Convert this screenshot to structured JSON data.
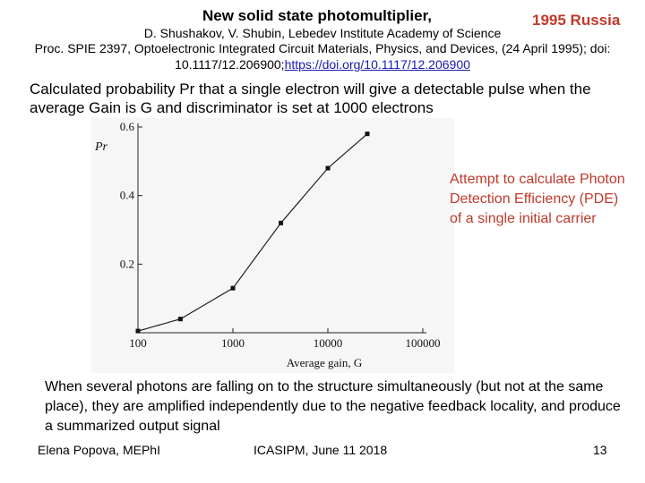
{
  "header": {
    "title": "New solid state photomultiplier,",
    "country": "1995 Russia",
    "authors": "D. Shushakov, V. Shubin, Lebedev Institute Academy of Science",
    "proc_line1": "Proc. SPIE 2397, Optoelectronic Integrated Circuit Materials, Physics, and Devices, (24 April 1995); doi:",
    "proc_doi": "10.1117/12.206900;",
    "proc_link": "https://doi.org/10.1117/12.206900"
  },
  "heading": "Calculated probability Pr that a single electron will give a detectable pulse when the average Gain is G and discriminator is set at 1000 electrons",
  "note": "Attempt to calculate Photon Detection Efficiency (PDE) of a single initial carrier",
  "bottom_text": "When several photons are falling on to the structure simultaneously (but not at the same place), they are amplified independently due to the negative feedback locality, and produce a summarized output signal",
  "footer": {
    "left": "Elena Popova, MEPhI",
    "center": "ICASIPM, June 11 2018",
    "page": "13"
  },
  "chart_data": {
    "type": "line",
    "title": "",
    "xlabel": "Average gain, G",
    "ylabel": "Pr",
    "x_scale": "log",
    "xlim": [
      100,
      100000
    ],
    "ylim": [
      0,
      0.6
    ],
    "x_ticks": [
      100,
      1000,
      10000,
      100000
    ],
    "x_tick_labels": [
      "100",
      "1000",
      "10000",
      "100000"
    ],
    "y_ticks": [
      0.2,
      0.4,
      0.6
    ],
    "y_tick_labels": [
      "0.2",
      "0.4",
      "0.6"
    ],
    "grid": false,
    "series": [
      {
        "x": [
          100,
          280,
          1000,
          3200,
          10000,
          26000
        ],
        "y": [
          0.005,
          0.04,
          0.13,
          0.32,
          0.48,
          0.58
        ]
      }
    ]
  }
}
